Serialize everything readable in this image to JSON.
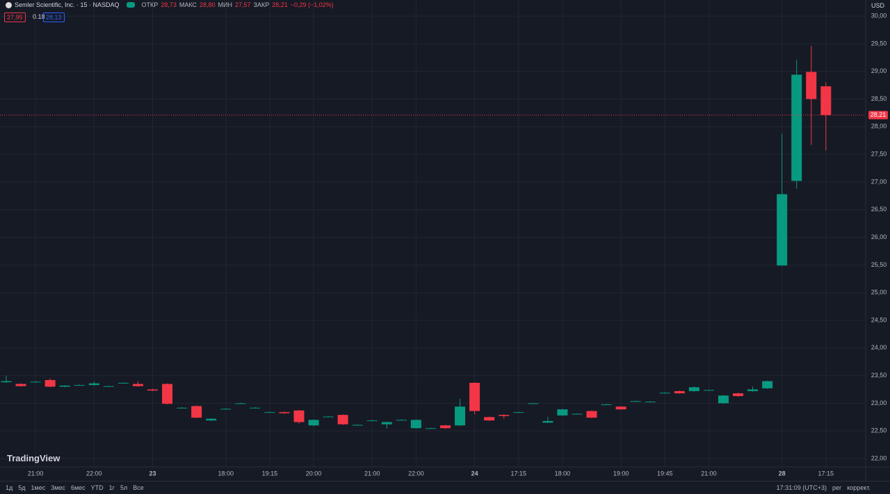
{
  "chart_data": {
    "type": "candlestick",
    "legend": {
      "symbol": "Semler Scientific, Inc. · 15 · NASDAQ",
      "o_label": "ОТКР",
      "o": "28,73",
      "h_label": "МАКС",
      "h": "28,80",
      "l_label": "МИН",
      "l": "27,57",
      "c_label": "ЗАКР",
      "c": "28,21",
      "change": "−0,29 (−1,02%)",
      "bid": "27,95",
      "spread": "0.18",
      "ask": "28,13"
    },
    "currency": "USD",
    "categories": [
      null,
      null,
      "21:00",
      null,
      null,
      null,
      "22:00",
      null,
      null,
      null,
      "23",
      null,
      null,
      null,
      null,
      "18:00",
      null,
      null,
      "19:15",
      null,
      null,
      "20:00",
      null,
      null,
      null,
      "21:00",
      null,
      null,
      "22:00",
      null,
      null,
      null,
      "24",
      null,
      null,
      "17:15",
      null,
      null,
      "18:00",
      null,
      null,
      null,
      "19:00",
      null,
      null,
      "19:45",
      null,
      null,
      "21:00",
      null,
      null,
      null,
      null,
      "28",
      null,
      null,
      "17:15"
    ],
    "open": [
      23.38,
      23.35,
      23.38,
      23.42,
      23.3,
      23.33,
      23.33,
      23.31,
      23.37,
      23.35,
      23.25,
      23.35,
      22.92,
      22.95,
      22.69,
      22.9,
      23.0,
      22.92,
      22.84,
      22.84,
      22.87,
      22.6,
      22.76,
      22.79,
      22.61,
      22.69,
      22.62,
      22.7,
      22.55,
      22.55,
      22.6,
      22.6,
      23.37,
      22.75,
      22.79,
      22.84,
      23.0,
      22.65,
      22.78,
      22.81,
      22.86,
      22.98,
      22.94,
      23.04,
      23.03,
      23.19,
      23.22,
      23.22,
      23.24,
      23.0,
      23.18,
      23.22,
      23.27,
      25.49,
      27.02,
      28.99,
      28.73
    ],
    "high": [
      23.5,
      23.36,
      23.4,
      23.45,
      23.33,
      23.34,
      23.39,
      23.32,
      23.38,
      23.4,
      23.26,
      23.36,
      22.93,
      22.96,
      22.73,
      22.91,
      23.01,
      22.93,
      22.85,
      22.85,
      22.88,
      22.71,
      22.77,
      22.8,
      22.62,
      22.7,
      22.67,
      22.71,
      22.71,
      22.56,
      22.61,
      23.08,
      23.38,
      22.76,
      22.8,
      22.85,
      23.01,
      22.75,
      22.9,
      22.82,
      22.87,
      22.99,
      22.95,
      23.05,
      23.04,
      23.2,
      23.23,
      23.3,
      23.25,
      23.15,
      23.19,
      23.3,
      23.41,
      27.87,
      29.21,
      29.46,
      28.8
    ],
    "low": [
      23.37,
      23.3,
      23.37,
      23.29,
      23.29,
      23.32,
      23.32,
      23.3,
      23.36,
      23.3,
      23.22,
      22.98,
      22.91,
      22.73,
      22.68,
      22.89,
      22.99,
      22.91,
      22.83,
      22.81,
      22.63,
      22.59,
      22.75,
      22.61,
      22.6,
      22.68,
      22.54,
      22.69,
      22.54,
      22.54,
      22.54,
      22.59,
      22.8,
      22.68,
      22.72,
      22.83,
      22.99,
      22.64,
      22.77,
      22.8,
      22.73,
      22.97,
      22.88,
      23.03,
      23.02,
      23.18,
      23.17,
      23.21,
      23.23,
      22.99,
      23.12,
      23.21,
      23.26,
      25.49,
      26.88,
      27.67,
      27.57
    ],
    "close": [
      23.4,
      23.31,
      23.39,
      23.3,
      23.32,
      23.33,
      23.36,
      23.31,
      23.37,
      23.31,
      23.23,
      22.99,
      22.92,
      22.74,
      22.72,
      22.9,
      23.0,
      22.92,
      22.84,
      22.82,
      22.66,
      22.7,
      22.76,
      22.62,
      22.61,
      22.69,
      22.66,
      22.7,
      22.7,
      22.55,
      22.55,
      22.94,
      22.86,
      22.69,
      22.77,
      22.84,
      23.0,
      22.68,
      22.89,
      22.81,
      22.74,
      22.98,
      22.89,
      23.04,
      23.03,
      23.19,
      23.18,
      23.29,
      23.24,
      23.14,
      23.13,
      23.25,
      23.4,
      26.78,
      28.94,
      28.5,
      28.21
    ],
    "last_close_label": "28,21",
    "up_color": "#089981",
    "down_color": "#f23645",
    "ylim": [
      21.85,
      30.29
    ],
    "yticks": [
      {
        "value": 22,
        "label": "22,00"
      },
      {
        "value": 22.5,
        "label": "22,50"
      },
      {
        "value": 23,
        "label": "23,00"
      },
      {
        "value": 23.5,
        "label": "23,50"
      },
      {
        "value": 24,
        "label": "24,00"
      },
      {
        "value": 24.5,
        "label": "24,50"
      },
      {
        "value": 25,
        "label": "25,00"
      },
      {
        "value": 25.5,
        "label": "25,50"
      },
      {
        "value": 26,
        "label": "26,00"
      },
      {
        "value": 26.5,
        "label": "26,50"
      },
      {
        "value": 27,
        "label": "27,00"
      },
      {
        "value": 27.5,
        "label": "27,50"
      },
      {
        "value": 28,
        "label": "28,00"
      },
      {
        "value": 28.5,
        "label": "28,50"
      },
      {
        "value": 29,
        "label": "29,00"
      },
      {
        "value": 29.5,
        "label": "29,50"
      },
      {
        "value": 30,
        "label": "30,00"
      }
    ],
    "grid": true
  },
  "watermark": "TradingView",
  "toolbar": {
    "ranges": [
      "1д",
      "5д",
      "1мес",
      "3мес",
      "6мес",
      "YTD",
      "1г",
      "5л",
      "Все"
    ],
    "time": "17:31:09 (UTC+3)",
    "session": "рег",
    "adjust": "коррект."
  }
}
